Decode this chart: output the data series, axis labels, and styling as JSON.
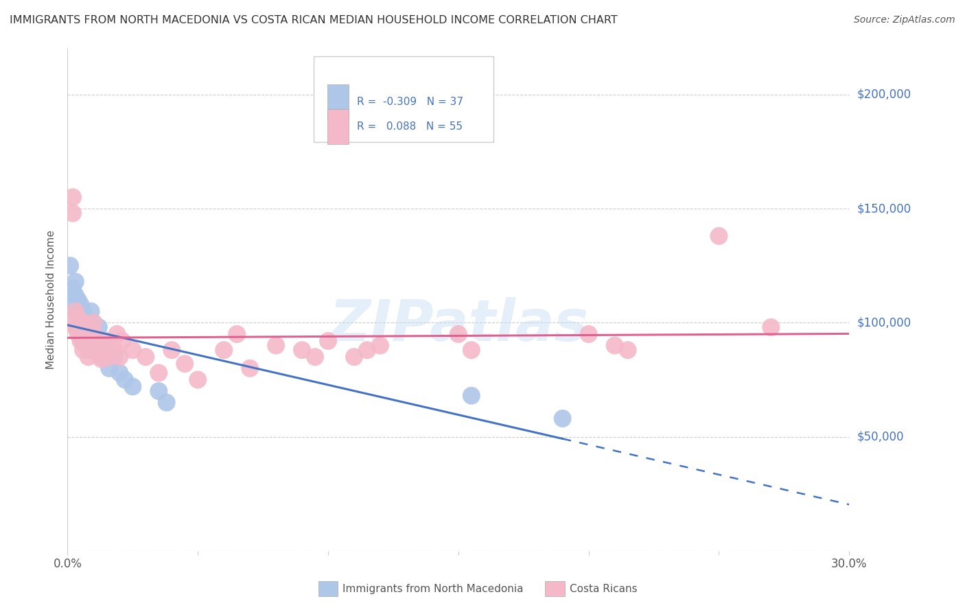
{
  "title": "IMMIGRANTS FROM NORTH MACEDONIA VS COSTA RICAN MEDIAN HOUSEHOLD INCOME CORRELATION CHART",
  "source": "Source: ZipAtlas.com",
  "ylabel": "Median Household Income",
  "watermark": "ZIPatlas",
  "legend_top": {
    "series1_label": "R =  -0.309   N = 37",
    "series2_label": "R =   0.088   N = 55",
    "series1_color": "#aec6e8",
    "series2_color": "#f4b8c8"
  },
  "series1": {
    "name": "Immigrants from North Macedonia",
    "color": "#aec6e8",
    "line_color": "#4472c4",
    "x": [
      0.001,
      0.002,
      0.002,
      0.003,
      0.003,
      0.003,
      0.004,
      0.004,
      0.004,
      0.005,
      0.005,
      0.005,
      0.006,
      0.006,
      0.006,
      0.007,
      0.007,
      0.008,
      0.008,
      0.009,
      0.009,
      0.01,
      0.01,
      0.011,
      0.012,
      0.013,
      0.014,
      0.015,
      0.016,
      0.018,
      0.02,
      0.022,
      0.025,
      0.035,
      0.038,
      0.155,
      0.19
    ],
    "y": [
      125000,
      115000,
      108000,
      112000,
      105000,
      118000,
      110000,
      103000,
      98000,
      108000,
      100000,
      95000,
      105000,
      98000,
      92000,
      102000,
      96000,
      100000,
      93000,
      105000,
      88000,
      100000,
      95000,
      92000,
      98000,
      85000,
      90000,
      88000,
      80000,
      85000,
      78000,
      75000,
      72000,
      70000,
      65000,
      68000,
      58000
    ]
  },
  "series2": {
    "name": "Costa Ricans",
    "color": "#f4b8c8",
    "line_color": "#e06090",
    "x": [
      0.001,
      0.002,
      0.002,
      0.003,
      0.003,
      0.004,
      0.004,
      0.005,
      0.005,
      0.006,
      0.006,
      0.007,
      0.007,
      0.008,
      0.008,
      0.009,
      0.009,
      0.01,
      0.01,
      0.011,
      0.011,
      0.012,
      0.012,
      0.013,
      0.014,
      0.015,
      0.016,
      0.017,
      0.018,
      0.019,
      0.02,
      0.021,
      0.025,
      0.03,
      0.035,
      0.04,
      0.045,
      0.05,
      0.06,
      0.065,
      0.07,
      0.08,
      0.09,
      0.095,
      0.1,
      0.11,
      0.115,
      0.12,
      0.15,
      0.155,
      0.2,
      0.21,
      0.215,
      0.25,
      0.27
    ],
    "y": [
      100000,
      155000,
      148000,
      98000,
      105000,
      102000,
      95000,
      98000,
      92000,
      100000,
      88000,
      96000,
      90000,
      98000,
      85000,
      95000,
      88000,
      100000,
      95000,
      88000,
      92000,
      86000,
      90000,
      84000,
      88000,
      92000,
      85000,
      90000,
      88000,
      95000,
      85000,
      92000,
      88000,
      85000,
      78000,
      88000,
      82000,
      75000,
      88000,
      95000,
      80000,
      90000,
      88000,
      85000,
      92000,
      85000,
      88000,
      90000,
      95000,
      88000,
      95000,
      90000,
      88000,
      138000,
      98000
    ]
  },
  "xlim": [
    0.0,
    0.3
  ],
  "ylim": [
    0,
    220000
  ],
  "yticks": [
    0,
    50000,
    100000,
    150000,
    200000
  ],
  "ytick_labels": [
    "",
    "$50,000",
    "$100,000",
    "$150,000",
    "$200,000"
  ],
  "xticks": [
    0.0,
    0.05,
    0.1,
    0.15,
    0.2,
    0.25,
    0.3
  ],
  "bg_color": "#ffffff",
  "grid_color": "#cccccc",
  "title_color": "#333333",
  "label_color": "#555555",
  "right_label_color": "#4472c4"
}
